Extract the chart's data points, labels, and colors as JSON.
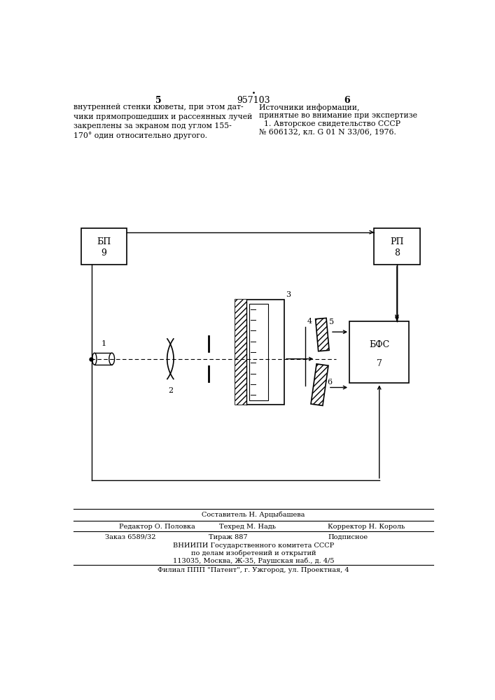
{
  "bg_color": "#ffffff",
  "patent_number": "957103",
  "page_left": "5",
  "page_right": "6",
  "top_text_left": "внутренней стенки кюветы, при этом дат-\nчики прямопрошедших и рассеянных лучей\nзакреплены за экраном под углом 155-\n170° один относительно другого.",
  "top_text_right_line1": "Источники информации,",
  "top_text_right_line2": "принятые во внимание при экспертизе",
  "top_text_right_line3": "1. Авторское свидетельство СССР",
  "top_text_right_line4": "№ 606132, кл. G 01 N 33/06, 1976.",
  "bottom_line1": "Составитель Н. Арцыбашева",
  "bottom_line2_left": "Редактор О. Половка",
  "bottom_line2_mid": "Техред М. Надь",
  "bottom_line2_right": "Корректор Н. Король",
  "bottom_line3_left": "Заказ 6589/32",
  "bottom_line3_mid": "Тираж 887",
  "bottom_line3_right": "Подписное",
  "bottom_line4": "ВНИИПИ Государственного комитета СССР",
  "bottom_line5": "по делам изобретений и открытий",
  "bottom_line6": "113035, Москва, Ж-35, Раушская наб., д. 4/5",
  "bottom_line7": "Филиал ППП \"Патент\", г. Ужгород, ул. Проектная, 4"
}
